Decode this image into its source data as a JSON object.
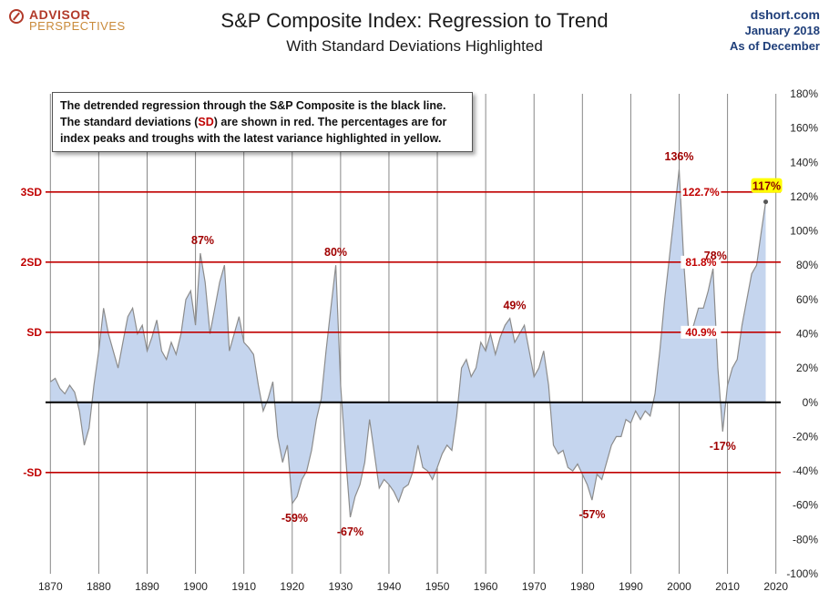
{
  "brand": {
    "line1": "ADVISOR",
    "line2": "PERSPECTIVES"
  },
  "header": {
    "title": "S&P Composite Index: Regression to Trend",
    "subtitle": "With Standard Deviations Highlighted"
  },
  "source": {
    "site": "dshort.com",
    "date": "January 2018",
    "as_of": "As of December"
  },
  "note": {
    "line1": "The detrended regression through the S&P Composite is the black line.",
    "line2_before": "The standard deviations (",
    "line2_sd": "SD",
    "line2_after": ") are shown in red.  The percentages are for",
    "line3": "index peaks and troughs with the latest variance highlighted in yellow."
  },
  "colors": {
    "area_fill": "#c5d5ee",
    "area_line": "#8c8c8c",
    "sd_line": "#c00000",
    "zero_line": "#000000",
    "grid": "#888888",
    "highlight": "#ffff00"
  },
  "chart_data": {
    "type": "area",
    "title": "S&P Composite Index: Regression to Trend",
    "subtitle": "With Standard Deviations Highlighted",
    "xlabel": "",
    "ylabel": "",
    "xlim": [
      1869,
      2021
    ],
    "ylim": [
      -100,
      180
    ],
    "x_ticks": [
      1870,
      1880,
      1890,
      1900,
      1910,
      1920,
      1930,
      1940,
      1950,
      1960,
      1970,
      1980,
      1990,
      2000,
      2010,
      2020
    ],
    "y_ticks": [
      180,
      160,
      140,
      120,
      100,
      80,
      60,
      40,
      20,
      0,
      -20,
      -40,
      -60,
      -80,
      -100
    ],
    "y_tick_suffix": "%",
    "grid": "vertical",
    "sd_lines": [
      {
        "label": "3SD",
        "value": 122.7,
        "value_label": "122.7%"
      },
      {
        "label": "2SD",
        "value": 81.8,
        "value_label": "81.8%"
      },
      {
        "label": "SD",
        "value": 40.9,
        "value_label": "40.9%"
      },
      {
        "label": "-SD",
        "value": -40.9,
        "value_label": ""
      }
    ],
    "annotations": [
      {
        "x": 1901.5,
        "y": 87,
        "text": "87%"
      },
      {
        "x": 1929,
        "y": 80,
        "text": "80%"
      },
      {
        "x": 1920.5,
        "y": -59,
        "text": "-59%"
      },
      {
        "x": 1932,
        "y": -67,
        "text": "-67%"
      },
      {
        "x": 1966,
        "y": 49,
        "text": "49%"
      },
      {
        "x": 1982,
        "y": -57,
        "text": "-57%"
      },
      {
        "x": 2000,
        "y": 136,
        "text": "136%"
      },
      {
        "x": 2007.5,
        "y": 78,
        "text": "78%"
      },
      {
        "x": 2009,
        "y": -17,
        "text": "-17%"
      },
      {
        "x": 2017.9,
        "y": 117,
        "text": "117%",
        "highlight": true
      }
    ],
    "series": [
      {
        "x": [
          1870,
          1871,
          1872,
          1873,
          1874,
          1875,
          1876,
          1877,
          1878,
          1879,
          1880,
          1881,
          1882,
          1883,
          1884,
          1885,
          1886,
          1887,
          1888,
          1889,
          1890,
          1891,
          1892,
          1893,
          1894,
          1895,
          1896,
          1897,
          1898,
          1899,
          1900,
          1901,
          1902,
          1903,
          1904,
          1905,
          1906,
          1907,
          1908,
          1909,
          1910,
          1911,
          1912,
          1913,
          1914,
          1915,
          1916,
          1917,
          1918,
          1919,
          1920,
          1921,
          1922,
          1923,
          1924,
          1925,
          1926,
          1927,
          1928,
          1929,
          1930,
          1931,
          1932,
          1933,
          1934,
          1935,
          1936,
          1937,
          1938,
          1939,
          1940,
          1941,
          1942,
          1943,
          1944,
          1945,
          1946,
          1947,
          1948,
          1949,
          1950,
          1951,
          1952,
          1953,
          1954,
          1955,
          1956,
          1957,
          1958,
          1959,
          1960,
          1961,
          1962,
          1963,
          1964,
          1965,
          1966,
          1967,
          1968,
          1969,
          1970,
          1971,
          1972,
          1973,
          1974,
          1975,
          1976,
          1977,
          1978,
          1979,
          1980,
          1981,
          1982,
          1983,
          1984,
          1985,
          1986,
          1987,
          1988,
          1989,
          1990,
          1991,
          1992,
          1993,
          1994,
          1995,
          1996,
          1997,
          1998,
          1999,
          2000,
          2001,
          2002,
          2003,
          2004,
          2005,
          2006,
          2007,
          2008,
          2009,
          2010,
          2011,
          2012,
          2013,
          2014,
          2015,
          2016,
          2017,
          2017.9
        ],
        "y": [
          12,
          14,
          8,
          5,
          10,
          6,
          -5,
          -25,
          -15,
          10,
          30,
          55,
          40,
          30,
          20,
          35,
          50,
          55,
          40,
          45,
          30,
          38,
          48,
          30,
          25,
          35,
          28,
          40,
          60,
          65,
          45,
          87,
          70,
          40,
          55,
          70,
          80,
          30,
          40,
          50,
          35,
          32,
          28,
          10,
          -5,
          2,
          12,
          -20,
          -35,
          -25,
          -59,
          -55,
          -45,
          -40,
          -28,
          -10,
          2,
          30,
          55,
          80,
          10,
          -30,
          -67,
          -55,
          -48,
          -35,
          -10,
          -30,
          -50,
          -45,
          -48,
          -52,
          -58,
          -50,
          -48,
          -40,
          -25,
          -38,
          -40,
          -45,
          -38,
          -30,
          -25,
          -28,
          -8,
          20,
          25,
          15,
          20,
          35,
          30,
          40,
          28,
          38,
          45,
          49,
          35,
          40,
          45,
          30,
          15,
          20,
          30,
          10,
          -25,
          -30,
          -28,
          -38,
          -40,
          -36,
          -42,
          -48,
          -57,
          -42,
          -45,
          -35,
          -25,
          -20,
          -20,
          -10,
          -12,
          -5,
          -10,
          -5,
          -8,
          5,
          30,
          60,
          85,
          110,
          136,
          80,
          40,
          45,
          55,
          55,
          65,
          78,
          20,
          -17,
          10,
          20,
          25,
          45,
          60,
          75,
          80,
          100,
          117
        ]
      }
    ]
  }
}
